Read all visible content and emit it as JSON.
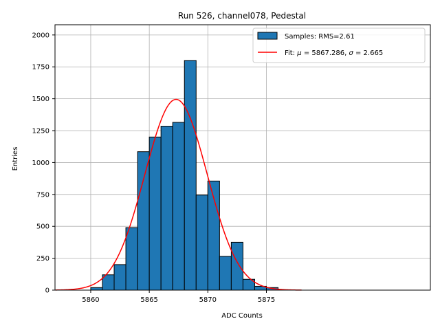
{
  "chart_data": {
    "type": "bar",
    "title": "Run 526, channel078, Pedestal",
    "xlabel": "ADC Counts",
    "ylabel": "Entries",
    "xlim": [
      5856.95,
      5889
    ],
    "ylim": [
      0,
      2080
    ],
    "grid": true,
    "x_ticks": [
      5860,
      5865,
      5870,
      5875
    ],
    "y_ticks": [
      0,
      250,
      500,
      750,
      1000,
      1250,
      1500,
      1750,
      2000
    ],
    "histogram": {
      "name": "Samples: RMS=2.61",
      "bin_edges": [
        5860,
        5861,
        5862,
        5863,
        5864,
        5865,
        5866,
        5867,
        5868,
        5869,
        5870,
        5871,
        5872,
        5873,
        5874,
        5875,
        5876
      ],
      "counts": [
        20,
        120,
        200,
        490,
        1085,
        1200,
        1285,
        1315,
        1800,
        745,
        855,
        265,
        375,
        85,
        30,
        20
      ],
      "color": "#1f77b4"
    },
    "fit": {
      "name": "Fit: μ = 5867.286, σ = 2.665",
      "mu": 5867.286,
      "sigma": 2.665,
      "peak": 1495,
      "x_range": [
        5857,
        5878
      ],
      "color": "#ff0000"
    },
    "legend": {
      "position": "top-right",
      "entries": [
        {
          "label_prefix": "Samples: RMS=2.61",
          "kind": "patch"
        },
        {
          "label_prefix": "Fit: ",
          "mu_symbol": "μ",
          "mu_text": " = 5867.286, ",
          "sigma_symbol": "σ",
          "sigma_text": " = 2.665",
          "kind": "line"
        }
      ]
    }
  }
}
